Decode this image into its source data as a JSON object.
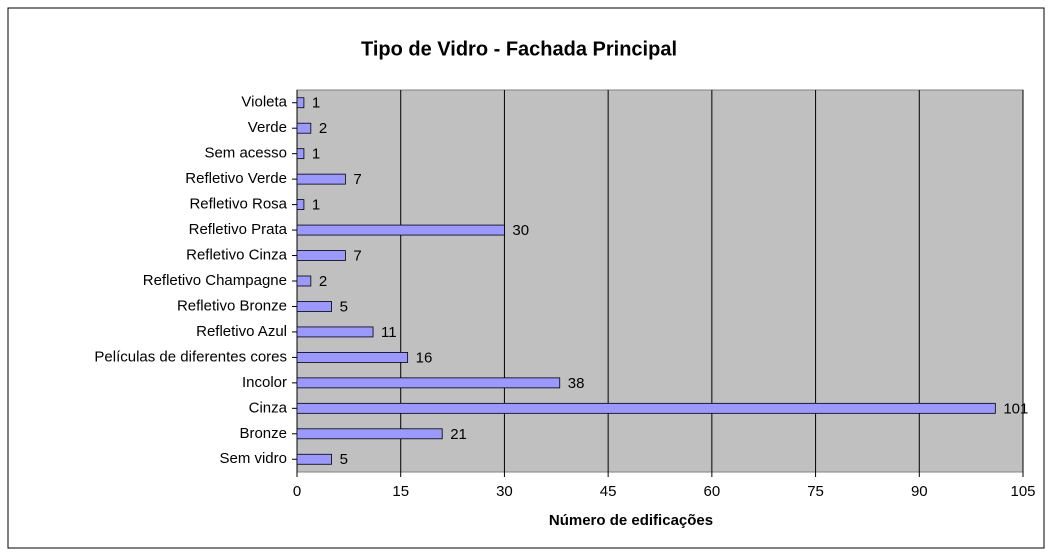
{
  "chart_data": {
    "type": "bar",
    "orientation": "horizontal",
    "title": "Tipo de Vidro - Fachada Principal",
    "xlabel": "Número de edificações",
    "categories": [
      "Violeta",
      "Verde",
      "Sem acesso",
      "Refletivo Verde",
      "Refletivo Rosa",
      "Refletivo Prata",
      "Refletivo Cinza",
      "Refletivo Champagne",
      "Refletivo Bronze",
      "Refletivo Azul",
      "Películas de diferentes cores",
      "Incolor",
      "Cinza",
      "Bronze",
      "Sem vidro"
    ],
    "values": [
      1,
      2,
      1,
      7,
      1,
      30,
      7,
      2,
      5,
      11,
      16,
      38,
      101,
      21,
      5
    ],
    "color": "#9999ff",
    "xlim": [
      0,
      105
    ],
    "xticks": [
      0,
      15,
      30,
      45,
      60,
      75,
      90,
      105
    ],
    "grid": true
  }
}
